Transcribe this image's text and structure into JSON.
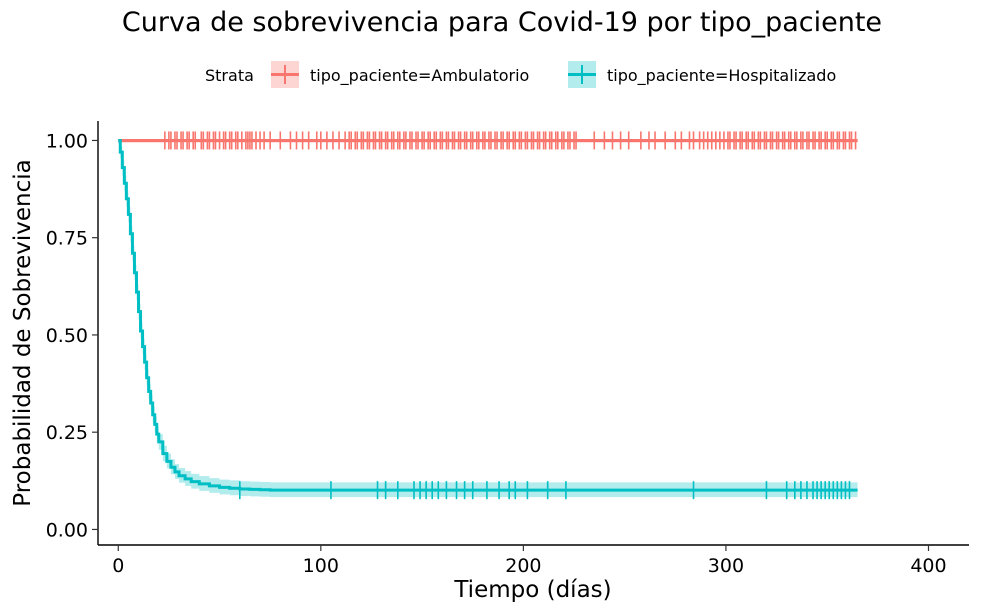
{
  "chart_data": {
    "type": "line",
    "subtype": "kaplan-meier survival curve",
    "title": "Curva de sobrevivencia para Covid-19 por tipo_paciente",
    "xlabel": "Tiempo (días)",
    "ylabel": "Probabilidad de Sobrevivencia",
    "xlim": [
      -10,
      420
    ],
    "ylim": [
      -0.04,
      1.05
    ],
    "x_ticks": [
      0,
      100,
      200,
      300,
      400
    ],
    "y_ticks": [
      0.0,
      0.25,
      0.5,
      0.75,
      1.0
    ],
    "x_tick_labels": [
      "0",
      "100",
      "200",
      "300",
      "400"
    ],
    "y_tick_labels": [
      "0.00",
      "0.25",
      "0.50",
      "0.75",
      "1.00"
    ],
    "grid": false,
    "legend": {
      "title": "Strata",
      "position": "top",
      "entries": [
        "tipo_paciente=Ambulatorio",
        "tipo_paciente=Hospitalizado"
      ]
    },
    "series": [
      {
        "name": "tipo_paciente=Ambulatorio",
        "color": "#F8766D",
        "fill_color": "#F8766D",
        "x": [
          0,
          365
        ],
        "y": [
          1.0,
          1.0
        ],
        "lower": [
          0.994,
          0.994
        ],
        "upper": [
          1.0,
          1.0
        ],
        "censor_times": [
          23,
          25,
          26,
          28,
          29,
          31,
          32,
          34,
          35,
          37,
          38,
          41,
          42,
          44,
          45,
          47,
          48,
          50,
          52,
          53,
          55,
          56,
          58,
          59,
          61,
          63,
          64,
          65,
          66,
          68,
          70,
          72,
          75,
          80,
          85,
          88,
          91,
          94,
          98,
          100,
          103,
          106,
          109,
          112,
          114,
          115,
          117,
          118,
          120,
          121,
          123,
          124,
          126,
          127,
          129,
          130,
          132,
          133,
          135,
          136,
          138,
          139,
          141,
          142,
          144,
          145,
          147,
          148,
          150,
          151,
          153,
          154,
          156,
          157,
          159,
          160,
          162,
          163,
          165,
          166,
          168,
          169,
          171,
          172,
          174,
          175,
          177,
          178,
          180,
          181,
          183,
          184,
          186,
          187,
          189,
          190,
          192,
          193,
          195,
          196,
          198,
          199,
          201,
          202,
          204,
          205,
          207,
          208,
          210,
          211,
          213,
          214,
          216,
          217,
          219,
          220,
          222,
          223,
          225,
          226,
          235,
          240,
          244,
          248,
          252,
          258,
          262,
          265,
          270,
          275,
          278,
          282,
          284,
          287,
          289,
          291,
          293,
          295,
          297,
          299,
          301,
          302,
          304,
          305,
          307,
          308,
          310,
          311,
          313,
          314,
          316,
          317,
          319,
          320,
          322,
          323,
          325,
          326,
          328,
          329,
          331,
          332,
          334,
          335,
          337,
          338,
          340,
          341,
          343,
          344,
          346,
          347,
          349,
          350,
          352,
          353,
          355,
          356,
          358,
          359,
          361,
          362,
          364
        ],
        "censor_y": 1.0
      },
      {
        "name": "tipo_paciente=Hospitalizado",
        "color": "#00BFC4",
        "fill_color": "#00BFC4",
        "x": [
          0,
          1,
          2,
          3,
          4,
          5,
          6,
          7,
          8,
          9,
          10,
          11,
          12,
          13,
          14,
          15,
          16,
          17,
          18,
          19,
          20,
          22,
          24,
          26,
          28,
          30,
          33,
          36,
          40,
          45,
          50,
          55,
          60,
          65,
          70,
          75,
          365
        ],
        "y": [
          1.0,
          0.97,
          0.93,
          0.89,
          0.85,
          0.81,
          0.76,
          0.71,
          0.66,
          0.61,
          0.56,
          0.51,
          0.47,
          0.43,
          0.39,
          0.355,
          0.325,
          0.295,
          0.27,
          0.245,
          0.225,
          0.195,
          0.175,
          0.16,
          0.148,
          0.138,
          0.13,
          0.123,
          0.117,
          0.112,
          0.108,
          0.106,
          0.104,
          0.103,
          0.102,
          0.101,
          0.101
        ],
        "lower": [
          0.99,
          0.955,
          0.91,
          0.87,
          0.83,
          0.79,
          0.74,
          0.69,
          0.64,
          0.59,
          0.54,
          0.49,
          0.45,
          0.41,
          0.37,
          0.335,
          0.305,
          0.275,
          0.25,
          0.225,
          0.205,
          0.175,
          0.157,
          0.142,
          0.13,
          0.12,
          0.112,
          0.105,
          0.099,
          0.094,
          0.09,
          0.088,
          0.086,
          0.085,
          0.084,
          0.083,
          0.083
        ],
        "upper": [
          1.0,
          0.985,
          0.95,
          0.91,
          0.87,
          0.83,
          0.78,
          0.73,
          0.68,
          0.63,
          0.58,
          0.53,
          0.49,
          0.45,
          0.41,
          0.375,
          0.345,
          0.315,
          0.29,
          0.265,
          0.245,
          0.215,
          0.195,
          0.18,
          0.168,
          0.158,
          0.15,
          0.143,
          0.137,
          0.132,
          0.128,
          0.126,
          0.124,
          0.123,
          0.122,
          0.121,
          0.121
        ],
        "censor_times": [
          60,
          105,
          128,
          132,
          138,
          146,
          149,
          152,
          155,
          158,
          162,
          167,
          171,
          175,
          182,
          188,
          193,
          196,
          202,
          212,
          221,
          284,
          320,
          330,
          334,
          337,
          340,
          343,
          345,
          347,
          349,
          351,
          353,
          355,
          357,
          359,
          361
        ],
        "censor_y": 0.101
      }
    ]
  }
}
